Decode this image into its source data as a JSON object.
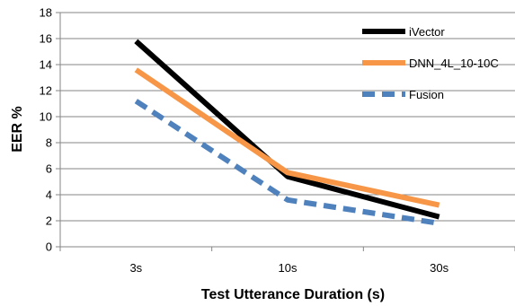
{
  "chart_data": {
    "type": "line",
    "xlabel": "Test Utterance Duration (s)",
    "ylabel": "EER %",
    "categories": [
      "3s",
      "10s",
      "30s"
    ],
    "ylim": [
      0,
      18
    ],
    "yticks": [
      0,
      2,
      4,
      6,
      8,
      10,
      12,
      14,
      16,
      18
    ],
    "grid": "horizontal",
    "legend_position": "top-right",
    "series": [
      {
        "name": "iVector",
        "values": [
          15.8,
          5.4,
          2.3
        ],
        "color": "#000000",
        "dash": "solid"
      },
      {
        "name": "DNN_4L_10-10C",
        "values": [
          13.6,
          5.7,
          3.2
        ],
        "color": "#f79646",
        "dash": "solid"
      },
      {
        "name": "Fusion",
        "values": [
          11.2,
          3.6,
          1.8
        ],
        "color": "#4f81bd",
        "dash": "dashed"
      }
    ]
  }
}
